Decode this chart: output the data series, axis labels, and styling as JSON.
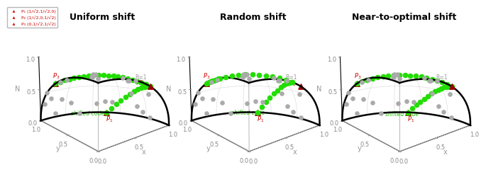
{
  "titles": [
    "Uniform shift",
    "Random shift",
    "Near-to-optimal shift"
  ],
  "legend_lines": [
    "P₁ (1/√2,1/√2,0)",
    "P₂ (1/√2,0,1/√2)",
    "P₃ (0,1/√2,1/√2)"
  ],
  "green_color": "#22dd00",
  "gray_color": "#aaaaaa",
  "dark_red": "#990000",
  "green_label_color": "#22bb00",
  "R_label_color": "#999999",
  "axis_label_color": "#999999",
  "P_label_color": "#cc0000",
  "title_fontsize": 9,
  "tick_fontsize": 6,
  "label_fontsize": 7,
  "annot_fontsize": 6,
  "elev": 22,
  "azim": -130
}
